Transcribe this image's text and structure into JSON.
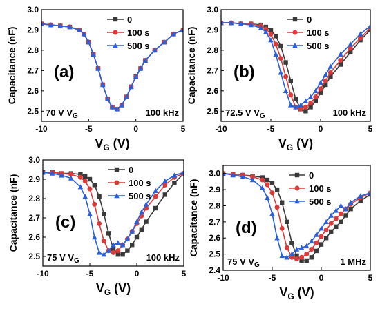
{
  "chart_data": [
    {
      "type": "line",
      "panel_label": "(a)",
      "voltage_label": "70 V V",
      "voltage_subscript": "G",
      "frequency_label": "100 kHz",
      "xlabel": "V",
      "xlabel_sub": "G",
      "xlabel_unit": " (V)",
      "ylabel": "Capacitance (nF)",
      "xlim": [
        -10,
        5
      ],
      "ylim": [
        2.45,
        3.0
      ],
      "xticks": [
        -10,
        -5,
        0,
        5
      ],
      "yticks": [
        2.5,
        2.6,
        2.7,
        2.8,
        2.9,
        3.0
      ],
      "legend": [
        "0",
        "100 s",
        "500 s"
      ],
      "series": [
        {
          "name": "0",
          "color": "#3a3a3a",
          "marker": "square",
          "x": [
            -10,
            -9,
            -8,
            -7,
            -6,
            -5.5,
            -5,
            -4.5,
            -4,
            -3.5,
            -3,
            -2.5,
            -2,
            -1.5,
            -1,
            -0.5,
            0,
            0.5,
            1,
            2,
            3,
            4,
            5
          ],
          "y": [
            2.93,
            2.925,
            2.92,
            2.915,
            2.9,
            2.88,
            2.84,
            2.78,
            2.71,
            2.63,
            2.56,
            2.52,
            2.51,
            2.53,
            2.57,
            2.62,
            2.67,
            2.71,
            2.75,
            2.8,
            2.84,
            2.88,
            2.9
          ]
        },
        {
          "name": "100 s",
          "color": "#d93a3a",
          "marker": "circle",
          "x": [
            -10,
            -9,
            -8,
            -7,
            -6,
            -5.5,
            -5,
            -4.5,
            -4,
            -3.5,
            -3,
            -2.5,
            -2,
            -1.5,
            -1,
            -0.5,
            0,
            0.5,
            1,
            2,
            3,
            4,
            5
          ],
          "y": [
            2.93,
            2.925,
            2.92,
            2.915,
            2.9,
            2.88,
            2.84,
            2.78,
            2.71,
            2.63,
            2.56,
            2.52,
            2.51,
            2.53,
            2.57,
            2.62,
            2.67,
            2.71,
            2.75,
            2.8,
            2.84,
            2.88,
            2.9
          ]
        },
        {
          "name": "500 s",
          "color": "#2a5fd6",
          "marker": "triangle",
          "x": [
            -10,
            -9,
            -8,
            -7,
            -6,
            -5.5,
            -5,
            -4.5,
            -4,
            -3.5,
            -3,
            -2.5,
            -2,
            -1.5,
            -1,
            -0.5,
            0,
            0.5,
            1,
            2,
            3,
            4,
            5
          ],
          "y": [
            2.93,
            2.925,
            2.92,
            2.915,
            2.9,
            2.88,
            2.84,
            2.78,
            2.71,
            2.63,
            2.56,
            2.52,
            2.51,
            2.53,
            2.57,
            2.62,
            2.67,
            2.71,
            2.75,
            2.8,
            2.84,
            2.88,
            2.9
          ]
        }
      ]
    },
    {
      "type": "line",
      "panel_label": "(b)",
      "voltage_label": "72.5 V V",
      "voltage_subscript": "G",
      "frequency_label": "100 kHz",
      "xlabel": "V",
      "xlabel_sub": "G",
      "xlabel_unit": " (V)",
      "ylabel": "Capacitance (nF)",
      "xlim": [
        -10,
        5
      ],
      "ylim": [
        2.45,
        3.0
      ],
      "xticks": [
        -10,
        -5,
        0,
        5
      ],
      "yticks": [
        2.5,
        2.6,
        2.7,
        2.8,
        2.9,
        3.0
      ],
      "legend": [
        "0",
        "100 s",
        "500 s"
      ],
      "series": [
        {
          "name": "0",
          "color": "#3a3a3a",
          "marker": "square",
          "x": [
            -10,
            -9,
            -8,
            -7,
            -6,
            -5.5,
            -5,
            -4.5,
            -4,
            -3.5,
            -3,
            -2.5,
            -2,
            -1.5,
            -1,
            -0.5,
            0,
            0.5,
            1,
            2,
            3,
            4,
            5
          ],
          "y": [
            2.935,
            2.935,
            2.93,
            2.93,
            2.925,
            2.915,
            2.9,
            2.87,
            2.82,
            2.74,
            2.65,
            2.56,
            2.51,
            2.5,
            2.52,
            2.55,
            2.59,
            2.63,
            2.67,
            2.73,
            2.79,
            2.85,
            2.9
          ]
        },
        {
          "name": "100 s",
          "color": "#d93a3a",
          "marker": "circle",
          "x": [
            -10,
            -9,
            -8,
            -7,
            -6,
            -5.5,
            -5,
            -4.5,
            -4,
            -3.5,
            -3,
            -2.5,
            -2,
            -1.5,
            -1,
            -0.5,
            0,
            0.5,
            1,
            2,
            3,
            4,
            5
          ],
          "y": [
            2.935,
            2.935,
            2.93,
            2.93,
            2.92,
            2.905,
            2.88,
            2.83,
            2.76,
            2.67,
            2.58,
            2.52,
            2.51,
            2.52,
            2.54,
            2.57,
            2.61,
            2.65,
            2.69,
            2.75,
            2.81,
            2.86,
            2.91
          ]
        },
        {
          "name": "500 s",
          "color": "#2a5fd6",
          "marker": "triangle",
          "x": [
            -10,
            -9,
            -8,
            -7,
            -6,
            -5.5,
            -5,
            -4.5,
            -4,
            -3.5,
            -3,
            -2.5,
            -2,
            -1.5,
            -1,
            -0.5,
            0,
            0.5,
            1,
            2,
            3,
            4,
            5
          ],
          "y": [
            2.935,
            2.935,
            2.93,
            2.925,
            2.91,
            2.89,
            2.85,
            2.78,
            2.69,
            2.6,
            2.53,
            2.52,
            2.53,
            2.55,
            2.57,
            2.6,
            2.64,
            2.68,
            2.72,
            2.78,
            2.83,
            2.88,
            2.92
          ]
        }
      ]
    },
    {
      "type": "line",
      "panel_label": "(c)",
      "voltage_label": "75 V V",
      "voltage_subscript": "G",
      "frequency_label": "100 kHz",
      "xlabel": "V",
      "xlabel_sub": "G",
      "xlabel_unit": " (V)",
      "ylabel": "Capacitance (nF)",
      "xlim": [
        -10,
        5
      ],
      "ylim": [
        2.45,
        3.0
      ],
      "xticks": [
        -10,
        -5,
        0,
        5
      ],
      "yticks": [
        2.5,
        2.6,
        2.7,
        2.8,
        2.9,
        3.0
      ],
      "legend": [
        "0",
        "100 s",
        "500 s"
      ],
      "series": [
        {
          "name": "0",
          "color": "#3a3a3a",
          "marker": "square",
          "x": [
            -10,
            -9,
            -8,
            -7,
            -6,
            -5.5,
            -5,
            -4.5,
            -4,
            -3.5,
            -3,
            -2.5,
            -2,
            -1.5,
            -1,
            -0.5,
            0,
            0.5,
            1,
            2,
            3,
            4,
            5
          ],
          "y": [
            2.935,
            2.935,
            2.93,
            2.93,
            2.925,
            2.915,
            2.9,
            2.87,
            2.81,
            2.72,
            2.62,
            2.54,
            2.51,
            2.51,
            2.53,
            2.56,
            2.6,
            2.64,
            2.68,
            2.75,
            2.82,
            2.88,
            2.93
          ]
        },
        {
          "name": "100 s",
          "color": "#d93a3a",
          "marker": "circle",
          "x": [
            -10,
            -9,
            -8,
            -7,
            -6,
            -5.5,
            -5,
            -4.5,
            -4,
            -3.5,
            -3,
            -2.5,
            -2,
            -1.5,
            -1,
            -0.5,
            0,
            0.5,
            1,
            2,
            3,
            4,
            5
          ],
          "y": [
            2.935,
            2.935,
            2.93,
            2.925,
            2.91,
            2.89,
            2.85,
            2.77,
            2.67,
            2.58,
            2.53,
            2.52,
            2.53,
            2.56,
            2.59,
            2.63,
            2.67,
            2.71,
            2.75,
            2.81,
            2.87,
            2.91,
            2.93
          ]
        },
        {
          "name": "500 s",
          "color": "#2a5fd6",
          "marker": "triangle",
          "x": [
            -10,
            -9,
            -8,
            -7,
            -6,
            -5.5,
            -5,
            -4.5,
            -4,
            -3.5,
            -3,
            -2.5,
            -2,
            -1.5,
            -1,
            -0.5,
            0,
            0.5,
            1,
            2,
            3,
            4,
            5
          ],
          "y": [
            2.935,
            2.93,
            2.92,
            2.905,
            2.86,
            2.81,
            2.72,
            2.6,
            2.52,
            2.51,
            2.53,
            2.56,
            2.57,
            2.56,
            2.59,
            2.63,
            2.68,
            2.73,
            2.77,
            2.84,
            2.89,
            2.92,
            2.935
          ]
        }
      ]
    },
    {
      "type": "line",
      "panel_label": "(d)",
      "voltage_label": "75 V V",
      "voltage_subscript": "G",
      "frequency_label": "1 MHz",
      "xlabel": "V",
      "xlabel_sub": "G",
      "xlabel_unit": " (V)",
      "ylabel": "Capacitance (nF)",
      "xlim": [
        -10,
        5
      ],
      "ylim": [
        2.4,
        3.05
      ],
      "xticks": [
        -10,
        -5,
        0,
        5
      ],
      "yticks": [
        2.4,
        2.5,
        2.6,
        2.7,
        2.8,
        2.9,
        3.0
      ],
      "legend": [
        "0",
        "100 s",
        "500 s"
      ],
      "series": [
        {
          "name": "0",
          "color": "#3a3a3a",
          "marker": "square",
          "x": [
            -10,
            -9,
            -8,
            -7,
            -6,
            -5.5,
            -5,
            -4.5,
            -4,
            -3.5,
            -3,
            -2.5,
            -2,
            -1.5,
            -1,
            -0.5,
            0,
            0.5,
            1,
            1.5,
            2,
            2.5,
            3,
            4,
            5
          ],
          "y": [
            3.0,
            2.995,
            2.99,
            2.985,
            2.975,
            2.96,
            2.94,
            2.9,
            2.82,
            2.7,
            2.57,
            2.49,
            2.46,
            2.46,
            2.48,
            2.52,
            2.56,
            2.6,
            2.64,
            2.67,
            2.7,
            2.74,
            2.78,
            2.83,
            2.87
          ]
        },
        {
          "name": "100 s",
          "color": "#d93a3a",
          "marker": "circle",
          "x": [
            -10,
            -9,
            -8,
            -7,
            -6,
            -5.5,
            -5,
            -4.5,
            -4,
            -3.5,
            -3,
            -2.5,
            -2,
            -1.5,
            -1,
            -0.5,
            0,
            0.5,
            1,
            1.5,
            2,
            2.5,
            3,
            4,
            5
          ],
          "y": [
            3.0,
            2.995,
            2.99,
            2.98,
            2.96,
            2.93,
            2.88,
            2.79,
            2.66,
            2.54,
            2.48,
            2.47,
            2.48,
            2.5,
            2.53,
            2.57,
            2.61,
            2.65,
            2.69,
            2.72,
            2.75,
            2.78,
            2.81,
            2.85,
            2.88
          ]
        },
        {
          "name": "500 s",
          "color": "#2a5fd6",
          "marker": "triangle",
          "x": [
            -10,
            -9,
            -8,
            -7,
            -6,
            -5.5,
            -5,
            -4.5,
            -4,
            -3.5,
            -3,
            -2.5,
            -2,
            -1.5,
            -1,
            -0.5,
            0,
            0.5,
            1,
            1.5,
            2,
            2.5,
            3,
            4,
            5
          ],
          "y": [
            3.0,
            2.99,
            2.98,
            2.96,
            2.91,
            2.85,
            2.75,
            2.6,
            2.49,
            2.48,
            2.5,
            2.53,
            2.54,
            2.55,
            2.58,
            2.62,
            2.66,
            2.7,
            2.74,
            2.77,
            2.8,
            2.78,
            2.82,
            2.86,
            2.88
          ]
        }
      ]
    }
  ]
}
